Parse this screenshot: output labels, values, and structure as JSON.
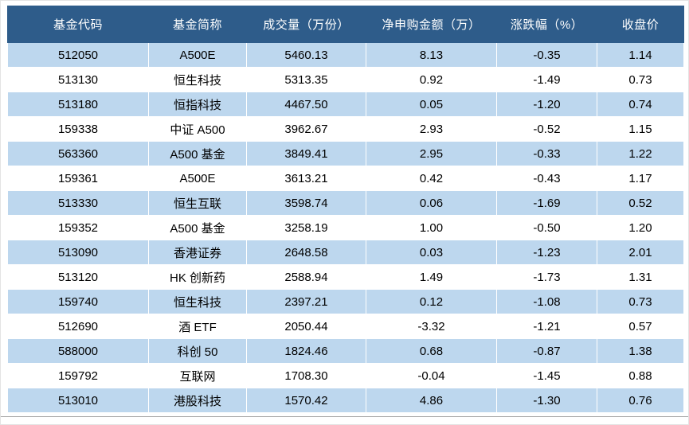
{
  "table": {
    "columns": [
      "基金代码",
      "基金简称",
      "成交量（万份）",
      "净申购金额（万）",
      "涨跌幅（%）",
      "收盘价"
    ],
    "column_keys": [
      "code",
      "name",
      "volume",
      "net-subscription",
      "change-pct",
      "close-price"
    ],
    "rows": [
      [
        "512050",
        "A500E",
        "5460.13",
        "8.13",
        "-0.35",
        "1.14"
      ],
      [
        "513130",
        "恒生科技",
        "5313.35",
        "0.92",
        "-1.49",
        "0.73"
      ],
      [
        "513180",
        "恒指科技",
        "4467.50",
        "0.05",
        "-1.20",
        "0.74"
      ],
      [
        "159338",
        "中证 A500",
        "3962.67",
        "2.93",
        "-0.52",
        "1.15"
      ],
      [
        "563360",
        "A500 基金",
        "3849.41",
        "2.95",
        "-0.33",
        "1.22"
      ],
      [
        "159361",
        "A500E",
        "3613.21",
        "0.42",
        "-0.43",
        "1.17"
      ],
      [
        "513330",
        "恒生互联",
        "3598.74",
        "0.06",
        "-1.69",
        "0.52"
      ],
      [
        "159352",
        "A500 基金",
        "3258.19",
        "1.00",
        "-0.50",
        "1.20"
      ],
      [
        "513090",
        "香港证券",
        "2648.58",
        "0.03",
        "-1.23",
        "2.01"
      ],
      [
        "513120",
        "HK 创新药",
        "2588.94",
        "1.49",
        "-1.73",
        "1.31"
      ],
      [
        "159740",
        "恒生科技",
        "2397.21",
        "0.12",
        "-1.08",
        "0.73"
      ],
      [
        "512690",
        "酒 ETF",
        "2050.44",
        "-3.32",
        "-1.21",
        "0.57"
      ],
      [
        "588000",
        "科创 50",
        "1824.46",
        "0.68",
        "-0.87",
        "1.38"
      ],
      [
        "159792",
        "互联网",
        "1708.30",
        "-0.04",
        "-1.45",
        "0.88"
      ],
      [
        "513010",
        "港股科技",
        "1570.42",
        "4.86",
        "-1.30",
        "0.76"
      ]
    ]
  },
  "colors": {
    "header_bg": "#2E5C8A",
    "header_text": "#FFFFFF",
    "band_bg": "#BDD7EE",
    "row_bg": "#FFFFFF",
    "body_text": "#000000",
    "divider": "#A6A6A6"
  }
}
